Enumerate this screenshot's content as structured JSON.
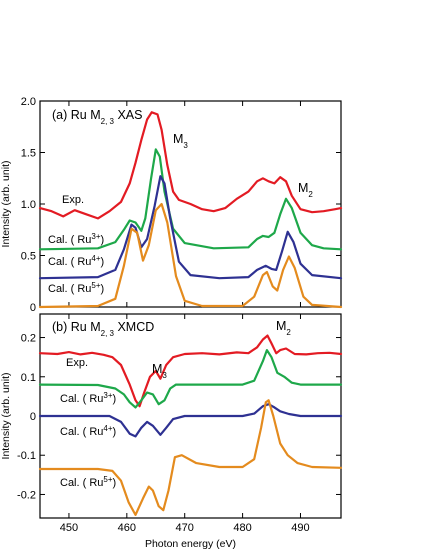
{
  "chart_data": [
    {
      "type": "line",
      "panel": "a",
      "title": "(a) Ru M",
      "title_sub": "2, 3",
      "title_suffix": " XAS",
      "ylabel": "Intensity (arb. unit)",
      "ylim": [
        0,
        2.0
      ],
      "yticks": [
        "0",
        "0.5",
        "1.0",
        "1.5",
        "2.0"
      ],
      "xlim": [
        445,
        497
      ],
      "annotations": [
        {
          "id": "m3",
          "base": "M",
          "sub": "3"
        },
        {
          "id": "m2",
          "base": "M",
          "sub": "2"
        }
      ],
      "series": [
        {
          "id": "exp",
          "label": "Exp.",
          "color": "#e31b23",
          "points": [
            [
              445,
              0.96
            ],
            [
              447,
              0.93
            ],
            [
              449,
              0.88
            ],
            [
              451,
              0.94
            ],
            [
              453,
              0.9
            ],
            [
              455,
              0.86
            ],
            [
              457,
              0.93
            ],
            [
              459,
              1.02
            ],
            [
              460.5,
              1.2
            ],
            [
              461.5,
              1.4
            ],
            [
              462.5,
              1.62
            ],
            [
              463.5,
              1.82
            ],
            [
              464.3,
              1.89
            ],
            [
              465.3,
              1.87
            ],
            [
              466,
              1.72
            ],
            [
              467,
              1.38
            ],
            [
              468,
              1.12
            ],
            [
              469,
              1.04
            ],
            [
              471,
              1.0
            ],
            [
              473,
              0.95
            ],
            [
              475,
              0.93
            ],
            [
              477,
              0.96
            ],
            [
              479,
              1.05
            ],
            [
              481,
              1.12
            ],
            [
              482.5,
              1.22
            ],
            [
              483.5,
              1.25
            ],
            [
              484.5,
              1.22
            ],
            [
              485.5,
              1.2
            ],
            [
              486.5,
              1.26
            ],
            [
              487.5,
              1.22
            ],
            [
              488.5,
              1.08
            ],
            [
              490,
              0.95
            ],
            [
              492,
              0.92
            ],
            [
              494,
              0.93
            ],
            [
              496,
              0.95
            ],
            [
              497,
              0.96
            ]
          ]
        },
        {
          "id": "ru3",
          "label_base": "Cal. ( Ru",
          "label_sup": "3+",
          "label_end": ")",
          "color": "#1ea84a",
          "points": [
            [
              445,
              0.56
            ],
            [
              455,
              0.57
            ],
            [
              458,
              0.63
            ],
            [
              459.5,
              0.75
            ],
            [
              460.5,
              0.84
            ],
            [
              461.5,
              0.82
            ],
            [
              462.5,
              0.74
            ],
            [
              463.2,
              0.86
            ],
            [
              464.2,
              1.25
            ],
            [
              465,
              1.53
            ],
            [
              465.7,
              1.46
            ],
            [
              466.5,
              1.12
            ],
            [
              468,
              0.76
            ],
            [
              470,
              0.62
            ],
            [
              475,
              0.57
            ],
            [
              481,
              0.58
            ],
            [
              482.5,
              0.66
            ],
            [
              483.5,
              0.69
            ],
            [
              484.5,
              0.68
            ],
            [
              485.5,
              0.72
            ],
            [
              486.5,
              0.9
            ],
            [
              487.5,
              1.05
            ],
            [
              488.5,
              0.96
            ],
            [
              490,
              0.72
            ],
            [
              492,
              0.6
            ],
            [
              494,
              0.57
            ],
            [
              497,
              0.56
            ]
          ]
        },
        {
          "id": "ru4",
          "label_base": "Cal. ( Ru",
          "label_sup": "4+",
          "label_end": ")",
          "color": "#2e3192",
          "points": [
            [
              445,
              0.28
            ],
            [
              455,
              0.29
            ],
            [
              458,
              0.36
            ],
            [
              459.5,
              0.56
            ],
            [
              460.8,
              0.8
            ],
            [
              461.5,
              0.77
            ],
            [
              462.5,
              0.58
            ],
            [
              463.5,
              0.66
            ],
            [
              464.8,
              0.98
            ],
            [
              465.8,
              1.27
            ],
            [
              466.5,
              1.2
            ],
            [
              467.5,
              0.86
            ],
            [
              469,
              0.44
            ],
            [
              471,
              0.31
            ],
            [
              476,
              0.28
            ],
            [
              481,
              0.29
            ],
            [
              482.5,
              0.36
            ],
            [
              484,
              0.4
            ],
            [
              485,
              0.37
            ],
            [
              485.8,
              0.36
            ],
            [
              486.8,
              0.54
            ],
            [
              487.8,
              0.73
            ],
            [
              488.8,
              0.63
            ],
            [
              490,
              0.42
            ],
            [
              492,
              0.31
            ],
            [
              497,
              0.28
            ]
          ]
        },
        {
          "id": "ru5",
          "label_base": "Cal. ( Ru",
          "label_sup": "5+",
          "label_end": ")",
          "color": "#e48b1e",
          "points": [
            [
              445,
              0.0
            ],
            [
              455,
              0.01
            ],
            [
              458,
              0.08
            ],
            [
              459.5,
              0.4
            ],
            [
              460.8,
              0.76
            ],
            [
              461.8,
              0.72
            ],
            [
              462.8,
              0.45
            ],
            [
              463.8,
              0.6
            ],
            [
              465,
              0.94
            ],
            [
              466,
              1.0
            ],
            [
              467,
              0.82
            ],
            [
              468.5,
              0.3
            ],
            [
              470,
              0.06
            ],
            [
              473,
              0.01
            ],
            [
              480,
              0.01
            ],
            [
              482,
              0.1
            ],
            [
              483.5,
              0.31
            ],
            [
              484.2,
              0.34
            ],
            [
              485.2,
              0.2
            ],
            [
              486,
              0.16
            ],
            [
              487,
              0.36
            ],
            [
              488,
              0.49
            ],
            [
              489,
              0.38
            ],
            [
              490.5,
              0.1
            ],
            [
              492,
              0.02
            ],
            [
              497,
              0.0
            ]
          ]
        }
      ]
    },
    {
      "type": "line",
      "panel": "b",
      "title": "(b) Ru M",
      "title_sub": "2, 3",
      "title_suffix": " XMCD",
      "xlabel": "Photon energy (eV)",
      "ylabel": "Intensity (arb. unit)",
      "ylim": [
        -0.26,
        0.26
      ],
      "yticks": [
        "-0.2",
        "-0.1",
        "0",
        "0.1",
        "0.2"
      ],
      "xlim": [
        445,
        497
      ],
      "xticks": [
        "450",
        "460",
        "470",
        "480",
        "490"
      ],
      "annotations": [
        {
          "id": "m3",
          "base": "M",
          "sub": "3"
        },
        {
          "id": "m2",
          "base": "M",
          "sub": "2"
        }
      ],
      "series": [
        {
          "id": "exp",
          "label": "Exp.",
          "color": "#e31b23",
          "points": [
            [
              445,
              0.16
            ],
            [
              448,
              0.158
            ],
            [
              450,
              0.163
            ],
            [
              452,
              0.157
            ],
            [
              454,
              0.161
            ],
            [
              456,
              0.156
            ],
            [
              457.5,
              0.15
            ],
            [
              459,
              0.13
            ],
            [
              460.5,
              0.08
            ],
            [
              461.5,
              0.04
            ],
            [
              462.2,
              0.025
            ],
            [
              463,
              0.06
            ],
            [
              464,
              0.1
            ],
            [
              465,
              0.115
            ],
            [
              465.8,
              0.095
            ],
            [
              466.8,
              0.13
            ],
            [
              468,
              0.15
            ],
            [
              470,
              0.158
            ],
            [
              473,
              0.16
            ],
            [
              476,
              0.157
            ],
            [
              479,
              0.162
            ],
            [
              481,
              0.16
            ],
            [
              482.5,
              0.175
            ],
            [
              483.5,
              0.195
            ],
            [
              484.3,
              0.205
            ],
            [
              485,
              0.185
            ],
            [
              485.8,
              0.16
            ],
            [
              486.5,
              0.168
            ],
            [
              487.5,
              0.172
            ],
            [
              489,
              0.158
            ],
            [
              491,
              0.157
            ],
            [
              493,
              0.16
            ],
            [
              495,
              0.161
            ],
            [
              497,
              0.158
            ]
          ]
        },
        {
          "id": "ru3",
          "label_base": "Cal. ( Ru",
          "label_sup": "3+",
          "label_end": ")",
          "color": "#1ea84a",
          "points": [
            [
              445,
              0.08
            ],
            [
              455,
              0.079
            ],
            [
              458,
              0.07
            ],
            [
              459.5,
              0.055
            ],
            [
              460.5,
              0.035
            ],
            [
              461.5,
              0.022
            ],
            [
              462.5,
              0.04
            ],
            [
              463.5,
              0.06
            ],
            [
              464.5,
              0.055
            ],
            [
              465.5,
              0.03
            ],
            [
              466.5,
              0.04
            ],
            [
              467.5,
              0.07
            ],
            [
              468.5,
              0.08
            ],
            [
              472,
              0.08
            ],
            [
              480,
              0.08
            ],
            [
              482,
              0.09
            ],
            [
              483.5,
              0.14
            ],
            [
              484.2,
              0.168
            ],
            [
              485,
              0.15
            ],
            [
              486,
              0.11
            ],
            [
              487.2,
              0.1
            ],
            [
              488.5,
              0.085
            ],
            [
              490,
              0.08
            ],
            [
              497,
              0.08
            ]
          ]
        },
        {
          "id": "ru4",
          "label_base": "Cal. ( Ru",
          "label_sup": "4+",
          "label_end": ")",
          "color": "#2e3192",
          "points": [
            [
              445,
              0.0
            ],
            [
              457,
              0.0
            ],
            [
              459,
              -0.015
            ],
            [
              460.5,
              -0.045
            ],
            [
              461.5,
              -0.052
            ],
            [
              462.5,
              -0.03
            ],
            [
              463.5,
              -0.015
            ],
            [
              464.5,
              -0.025
            ],
            [
              465.8,
              -0.048
            ],
            [
              466.8,
              -0.03
            ],
            [
              468,
              -0.008
            ],
            [
              470,
              0.0
            ],
            [
              480,
              0.0
            ],
            [
              482,
              0.006
            ],
            [
              483.5,
              0.025
            ],
            [
              484.5,
              0.03
            ],
            [
              485.5,
              0.022
            ],
            [
              486.5,
              0.012
            ],
            [
              488,
              0.005
            ],
            [
              490,
              0.0
            ],
            [
              497,
              0.0
            ]
          ]
        },
        {
          "id": "ru5",
          "label_base": "Cal. ( Ru",
          "label_sup": "5+",
          "label_end": ")",
          "color": "#e48b1e",
          "points": [
            [
              445,
              -0.135
            ],
            [
              455,
              -0.135
            ],
            [
              457.5,
              -0.14
            ],
            [
              459,
              -0.165
            ],
            [
              460.3,
              -0.22
            ],
            [
              461.5,
              -0.252
            ],
            [
              462.8,
              -0.21
            ],
            [
              463.8,
              -0.18
            ],
            [
              464.5,
              -0.19
            ],
            [
              465.5,
              -0.23
            ],
            [
              466.3,
              -0.24
            ],
            [
              467.2,
              -0.19
            ],
            [
              468.3,
              -0.105
            ],
            [
              469.5,
              -0.1
            ],
            [
              472,
              -0.12
            ],
            [
              476,
              -0.13
            ],
            [
              480,
              -0.13
            ],
            [
              482,
              -0.11
            ],
            [
              483.2,
              -0.03
            ],
            [
              484,
              0.035
            ],
            [
              484.5,
              0.04
            ],
            [
              485.3,
              0.0
            ],
            [
              486.5,
              -0.07
            ],
            [
              487.8,
              -0.1
            ],
            [
              489.5,
              -0.12
            ],
            [
              492,
              -0.13
            ],
            [
              497,
              -0.132
            ]
          ]
        }
      ]
    }
  ]
}
